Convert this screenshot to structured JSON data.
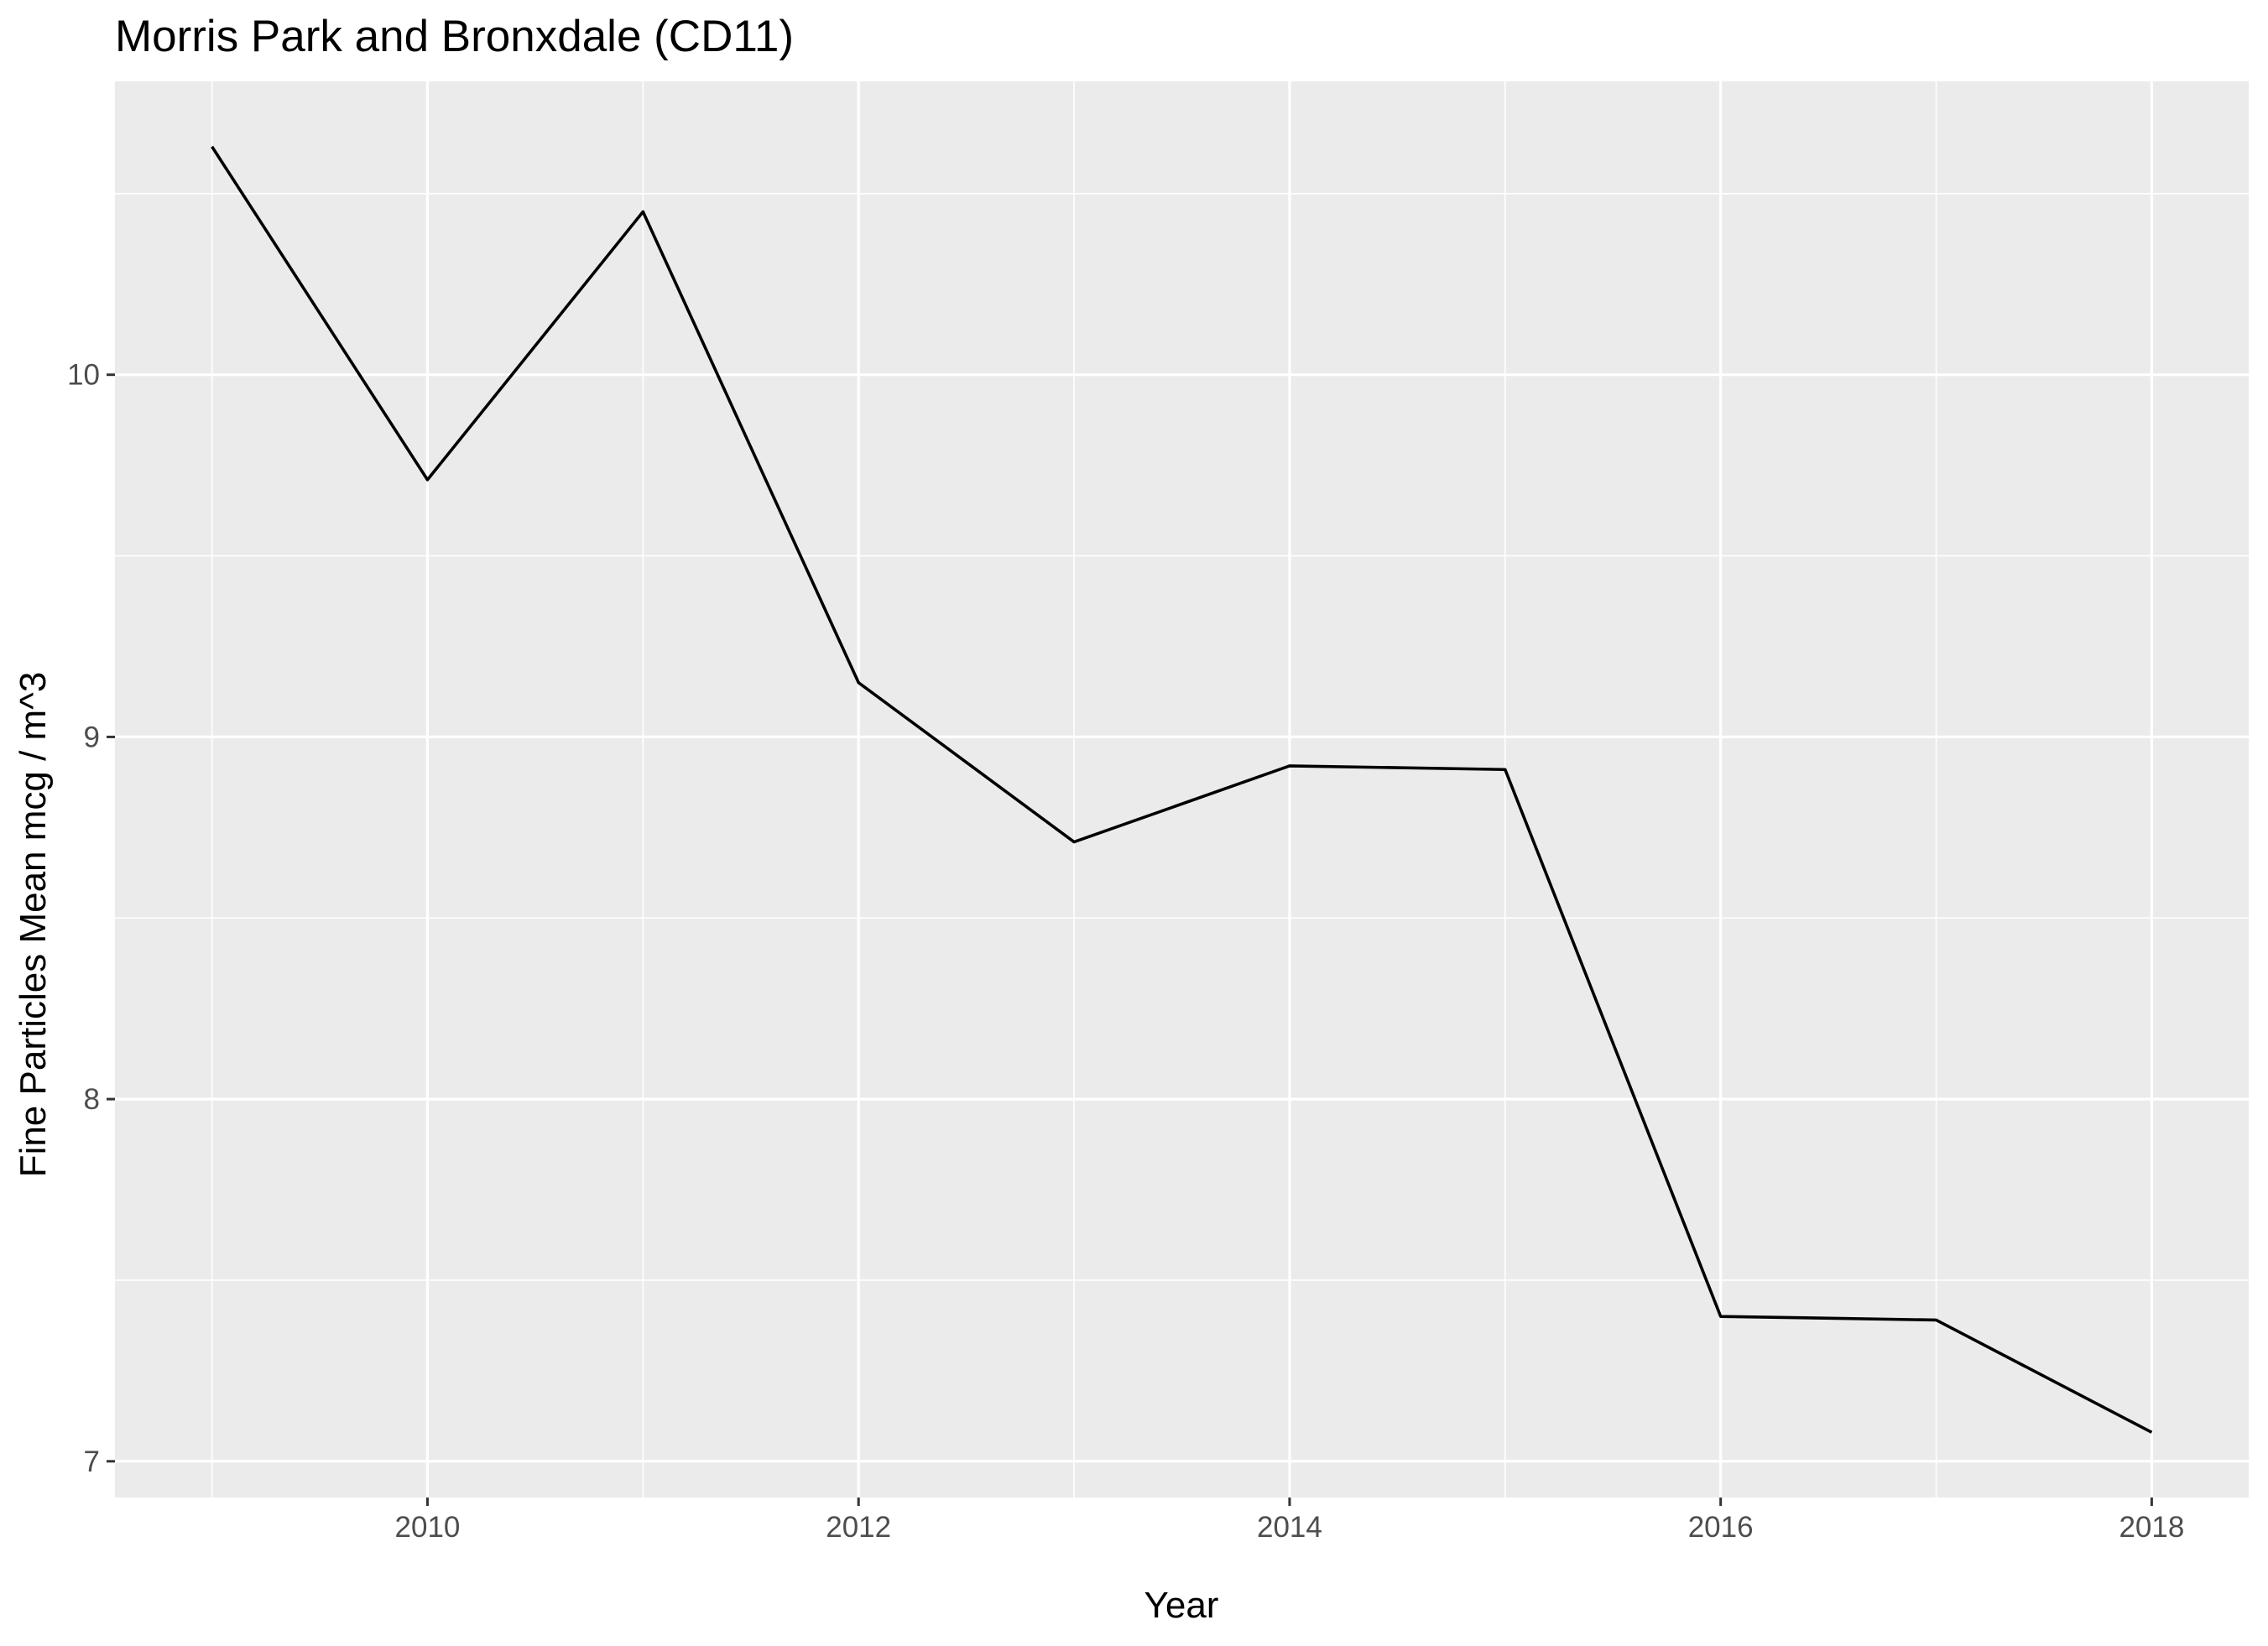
{
  "chart_data": {
    "type": "line",
    "title": "Morris Park and Bronxdale (CD11)",
    "xlabel": "Year",
    "ylabel": "Fine Particles Mean mcg / m^3",
    "x": [
      2009,
      2010,
      2011,
      2012,
      2013,
      2014,
      2015,
      2016,
      2017,
      2018
    ],
    "series": [
      {
        "values": [
          10.63,
          9.71,
          10.45,
          9.15,
          8.71,
          8.92,
          8.91,
          7.4,
          7.39,
          7.08
        ]
      }
    ],
    "xlim": [
      2008.55,
      2018.45
    ],
    "ylim": [
      6.9,
      10.81
    ],
    "x_ticks": [
      2010,
      2012,
      2014,
      2016,
      2018
    ],
    "x_tick_labels": [
      "2010",
      "2012",
      "2014",
      "2016",
      "2018"
    ],
    "x_minor_ticks": [
      2009,
      2011,
      2013,
      2015,
      2017
    ],
    "y_ticks": [
      7,
      8,
      9,
      10
    ],
    "y_tick_labels": [
      "7",
      "8",
      "9",
      "10"
    ],
    "y_minor_ticks": [
      7.5,
      8.5,
      9.5,
      10.5
    ],
    "grid": true,
    "legend": "none",
    "colors": {
      "panel_background": "#ebebeb",
      "grid_line": "#ffffff",
      "series_line": "#000000",
      "tick_label": "#4d4d4d",
      "tick_mark": "#333333",
      "text": "#000000"
    }
  }
}
